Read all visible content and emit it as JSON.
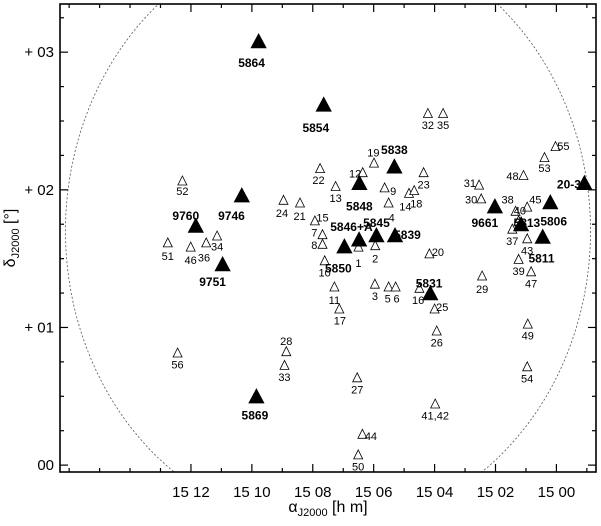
{
  "chart_data": {
    "type": "scatter",
    "title": "",
    "xlabel": {
      "main": "α",
      "sub": "J2000",
      "unit": " [h m]"
    },
    "ylabel": {
      "main": "δ",
      "sub": "J2000",
      "unit": " [°]"
    },
    "x_unit": "minutes relative to 15h00m (RA increasing to the left)",
    "xlim": [
      -1.3,
      16.3
    ],
    "ylim": [
      -0.05,
      3.35
    ],
    "x_reversed": true,
    "xticks": [
      {
        "label": "15 12",
        "value": 12
      },
      {
        "label": "15 10",
        "value": 10
      },
      {
        "label": "15 08",
        "value": 8
      },
      {
        "label": "15 06",
        "value": 6
      },
      {
        "label": "15 04",
        "value": 4
      },
      {
        "label": "15 02",
        "value": 2
      },
      {
        "label": "15 00",
        "value": 0
      }
    ],
    "yticks": [
      {
        "label": "00",
        "value": 0
      },
      {
        "label": "+ 01",
        "value": 1
      },
      {
        "label": "+ 02",
        "value": 2
      },
      {
        "label": "+ 03",
        "value": 3
      }
    ],
    "boundary_circle": {
      "center": [
        7.5,
        1.7
      ],
      "radius_x_min": 8.62,
      "radius_y_deg": 2.16
    },
    "series": [
      {
        "marker": "open-triangle",
        "points": [
          {
            "label": "1",
            "x": 6.5,
            "y": 1.58,
            "lx": 6.5,
            "ly": 1.47
          },
          {
            "label": "2",
            "x": 5.95,
            "y": 1.59,
            "lx": 5.95,
            "ly": 1.5
          },
          {
            "label": "3",
            "x": 5.96,
            "y": 1.31,
            "lx": 5.96,
            "ly": 1.23
          },
          {
            "label": "4",
            "x": 5.51,
            "y": 1.9,
            "lx": 5.41,
            "ly": 1.8
          },
          {
            "label": "5",
            "x": 5.51,
            "y": 1.29,
            "lx": 5.54,
            "ly": 1.21
          },
          {
            "label": "6",
            "x": 5.28,
            "y": 1.29,
            "lx": 5.25,
            "ly": 1.21
          },
          {
            "label": "7",
            "x": 7.68,
            "y": 1.67,
            "lx": 7.95,
            "ly": 1.69
          },
          {
            "label": "8",
            "x": 7.68,
            "y": 1.6,
            "lx": 7.95,
            "ly": 1.6
          },
          {
            "label": "9",
            "x": 5.64,
            "y": 2.01,
            "lx": 5.36,
            "ly": 1.99
          },
          {
            "label": "10",
            "x": 7.61,
            "y": 1.48,
            "lx": 7.61,
            "ly": 1.4
          },
          {
            "label": "11",
            "x": 7.29,
            "y": 1.29,
            "lx": 7.29,
            "ly": 1.2
          },
          {
            "label": "12",
            "x": 6.36,
            "y": 2.12,
            "lx": 6.61,
            "ly": 2.12
          },
          {
            "label": "13",
            "x": 7.25,
            "y": 2.02,
            "lx": 7.25,
            "ly": 1.94
          },
          {
            "label": "14",
            "x": 4.84,
            "y": 1.97,
            "lx": 4.96,
            "ly": 1.88
          },
          {
            "label": "15",
            "x": 7.93,
            "y": 1.77,
            "lx": 7.68,
            "ly": 1.8
          },
          {
            "label": "16",
            "x": 4.5,
            "y": 1.28,
            "lx": 4.54,
            "ly": 1.2
          },
          {
            "label": "17",
            "x": 7.13,
            "y": 1.13,
            "lx": 7.11,
            "ly": 1.05
          },
          {
            "label": "18",
            "x": 4.67,
            "y": 1.99,
            "lx": 4.6,
            "ly": 1.9
          },
          {
            "label": "19",
            "x": 5.99,
            "y": 2.19,
            "lx": 6.01,
            "ly": 2.27
          },
          {
            "label": "20",
            "x": 4.17,
            "y": 1.53,
            "lx": 3.89,
            "ly": 1.55
          },
          {
            "label": "21",
            "x": 8.42,
            "y": 1.9,
            "lx": 8.43,
            "ly": 1.81
          },
          {
            "label": "22",
            "x": 7.76,
            "y": 2.15,
            "lx": 7.81,
            "ly": 2.07
          },
          {
            "label": "23",
            "x": 4.36,
            "y": 2.12,
            "lx": 4.36,
            "ly": 2.04
          },
          {
            "label": "24",
            "x": 8.96,
            "y": 1.92,
            "lx": 9.01,
            "ly": 1.83
          },
          {
            "label": "25",
            "x": 4.0,
            "y": 1.13,
            "lx": 3.75,
            "ly": 1.15
          },
          {
            "label": "26",
            "x": 3.93,
            "y": 0.97,
            "lx": 3.93,
            "ly": 0.89
          },
          {
            "label": "27",
            "x": 6.54,
            "y": 0.63,
            "lx": 6.54,
            "ly": 0.55
          },
          {
            "label": "28",
            "x": 8.87,
            "y": 0.82,
            "lx": 8.87,
            "ly": 0.9
          },
          {
            "label": "29",
            "x": 2.44,
            "y": 1.37,
            "lx": 2.44,
            "ly": 1.28
          },
          {
            "label": "30",
            "x": 2.47,
            "y": 1.93,
            "lx": 2.8,
            "ly": 1.93
          },
          {
            "label": "31",
            "x": 2.54,
            "y": 2.03,
            "lx": 2.84,
            "ly": 2.05
          },
          {
            "label": "32",
            "x": 4.22,
            "y": 2.55,
            "lx": 4.22,
            "ly": 2.47
          },
          {
            "label": "33",
            "x": 8.93,
            "y": 0.72,
            "lx": 8.93,
            "ly": 0.64
          },
          {
            "label": "34",
            "x": 11.14,
            "y": 1.66,
            "lx": 11.14,
            "ly": 1.59
          },
          {
            "label": "35",
            "x": 3.72,
            "y": 2.55,
            "lx": 3.72,
            "ly": 2.47
          },
          {
            "label": "36",
            "x": 11.5,
            "y": 1.61,
            "lx": 11.57,
            "ly": 1.51
          },
          {
            "label": "37",
            "x": 1.45,
            "y": 1.71,
            "lx": 1.45,
            "ly": 1.63
          },
          {
            "label": "38",
            "x": 1.34,
            "y": 1.84,
            "lx": 1.6,
            "ly": 1.93
          },
          {
            "label": "39",
            "x": 1.24,
            "y": 1.49,
            "lx": 1.24,
            "ly": 1.41
          },
          {
            "label": "40",
            "x": 1.24,
            "y": 1.77,
            "lx": 1.2,
            "ly": 1.85
          },
          {
            "label": "41,42",
            "x": 3.98,
            "y": 0.44,
            "lx": 3.98,
            "ly": 0.36
          },
          {
            "label": "43",
            "x": 0.96,
            "y": 1.64,
            "lx": 0.96,
            "ly": 1.56
          },
          {
            "label": "44",
            "x": 6.37,
            "y": 0.22,
            "lx": 6.09,
            "ly": 0.21
          },
          {
            "label": "45",
            "x": 0.96,
            "y": 1.87,
            "lx": 0.69,
            "ly": 1.93
          },
          {
            "label": "46",
            "x": 12.01,
            "y": 1.58,
            "lx": 12.01,
            "ly": 1.49
          },
          {
            "label": "47",
            "x": 0.83,
            "y": 1.4,
            "lx": 0.83,
            "ly": 1.32
          },
          {
            "label": "48",
            "x": 1.08,
            "y": 2.1,
            "lx": 1.44,
            "ly": 2.1
          },
          {
            "label": "49",
            "x": 0.94,
            "y": 1.02,
            "lx": 0.94,
            "ly": 0.94
          },
          {
            "label": "50",
            "x": 6.51,
            "y": 0.07,
            "lx": 6.51,
            "ly": -0.01
          },
          {
            "label": "51",
            "x": 12.76,
            "y": 1.61,
            "lx": 12.76,
            "ly": 1.52
          },
          {
            "label": "52",
            "x": 12.28,
            "y": 2.06,
            "lx": 12.28,
            "ly": 1.99
          },
          {
            "label": "53",
            "x": 0.39,
            "y": 2.23,
            "lx": 0.39,
            "ly": 2.16
          },
          {
            "label": "54",
            "x": 0.96,
            "y": 0.71,
            "lx": 0.96,
            "ly": 0.63
          },
          {
            "label": "55",
            "x": 0.03,
            "y": 2.31,
            "lx": -0.23,
            "ly": 2.32
          },
          {
            "label": "56",
            "x": 12.44,
            "y": 0.81,
            "lx": 12.44,
            "ly": 0.73
          }
        ]
      },
      {
        "marker": "filled-triangle",
        "points": [
          {
            "label": "5864",
            "x": 9.78,
            "y": 3.07,
            "lx": 10.01,
            "ly": 2.92
          },
          {
            "label": "5854",
            "x": 7.64,
            "y": 2.61,
            "lx": 7.9,
            "ly": 2.45
          },
          {
            "label": "5838",
            "x": 5.32,
            "y": 2.16,
            "lx": 5.32,
            "ly": 2.29
          },
          {
            "label": "5848",
            "x": 6.47,
            "y": 2.04,
            "lx": 6.47,
            "ly": 1.88
          },
          {
            "label": "9746",
            "x": 10.33,
            "y": 1.95,
            "lx": 10.67,
            "ly": 1.81
          },
          {
            "label": "9760",
            "x": 11.84,
            "y": 1.73,
            "lx": 12.17,
            "ly": 1.81
          },
          {
            "label": "5846+A",
            "x": 6.48,
            "y": 1.63,
            "lx": 6.73,
            "ly": 1.73
          },
          {
            "label": "5845",
            "x": 5.91,
            "y": 1.66,
            "lx": 5.91,
            "ly": 1.76
          },
          {
            "label": "5839",
            "x": 5.3,
            "y": 1.66,
            "lx": 4.89,
            "ly": 1.67
          },
          {
            "label": "5850",
            "x": 6.96,
            "y": 1.58,
            "lx": 7.16,
            "ly": 1.43
          },
          {
            "label": "9751",
            "x": 10.96,
            "y": 1.45,
            "lx": 11.29,
            "ly": 1.33
          },
          {
            "label": "5831",
            "x": 4.14,
            "y": 1.24,
            "lx": 4.18,
            "ly": 1.32
          },
          {
            "label": "5869",
            "x": 9.85,
            "y": 0.49,
            "lx": 9.9,
            "ly": 0.36
          },
          {
            "label": "9661",
            "x": 2.02,
            "y": 1.87,
            "lx": 2.35,
            "ly": 1.76
          },
          {
            "label": "5813",
            "x": 1.16,
            "y": 1.74,
            "lx": 0.97,
            "ly": 1.76
          },
          {
            "label": "5806",
            "x": 0.2,
            "y": 1.9,
            "lx": 0.09,
            "ly": 1.77
          },
          {
            "label": "5811",
            "x": 0.45,
            "y": 1.65,
            "lx": 0.49,
            "ly": 1.5
          },
          {
            "label": "20-39",
            "x": -0.92,
            "y": 2.04,
            "lx": -0.52,
            "ly": 2.04
          }
        ]
      }
    ]
  }
}
